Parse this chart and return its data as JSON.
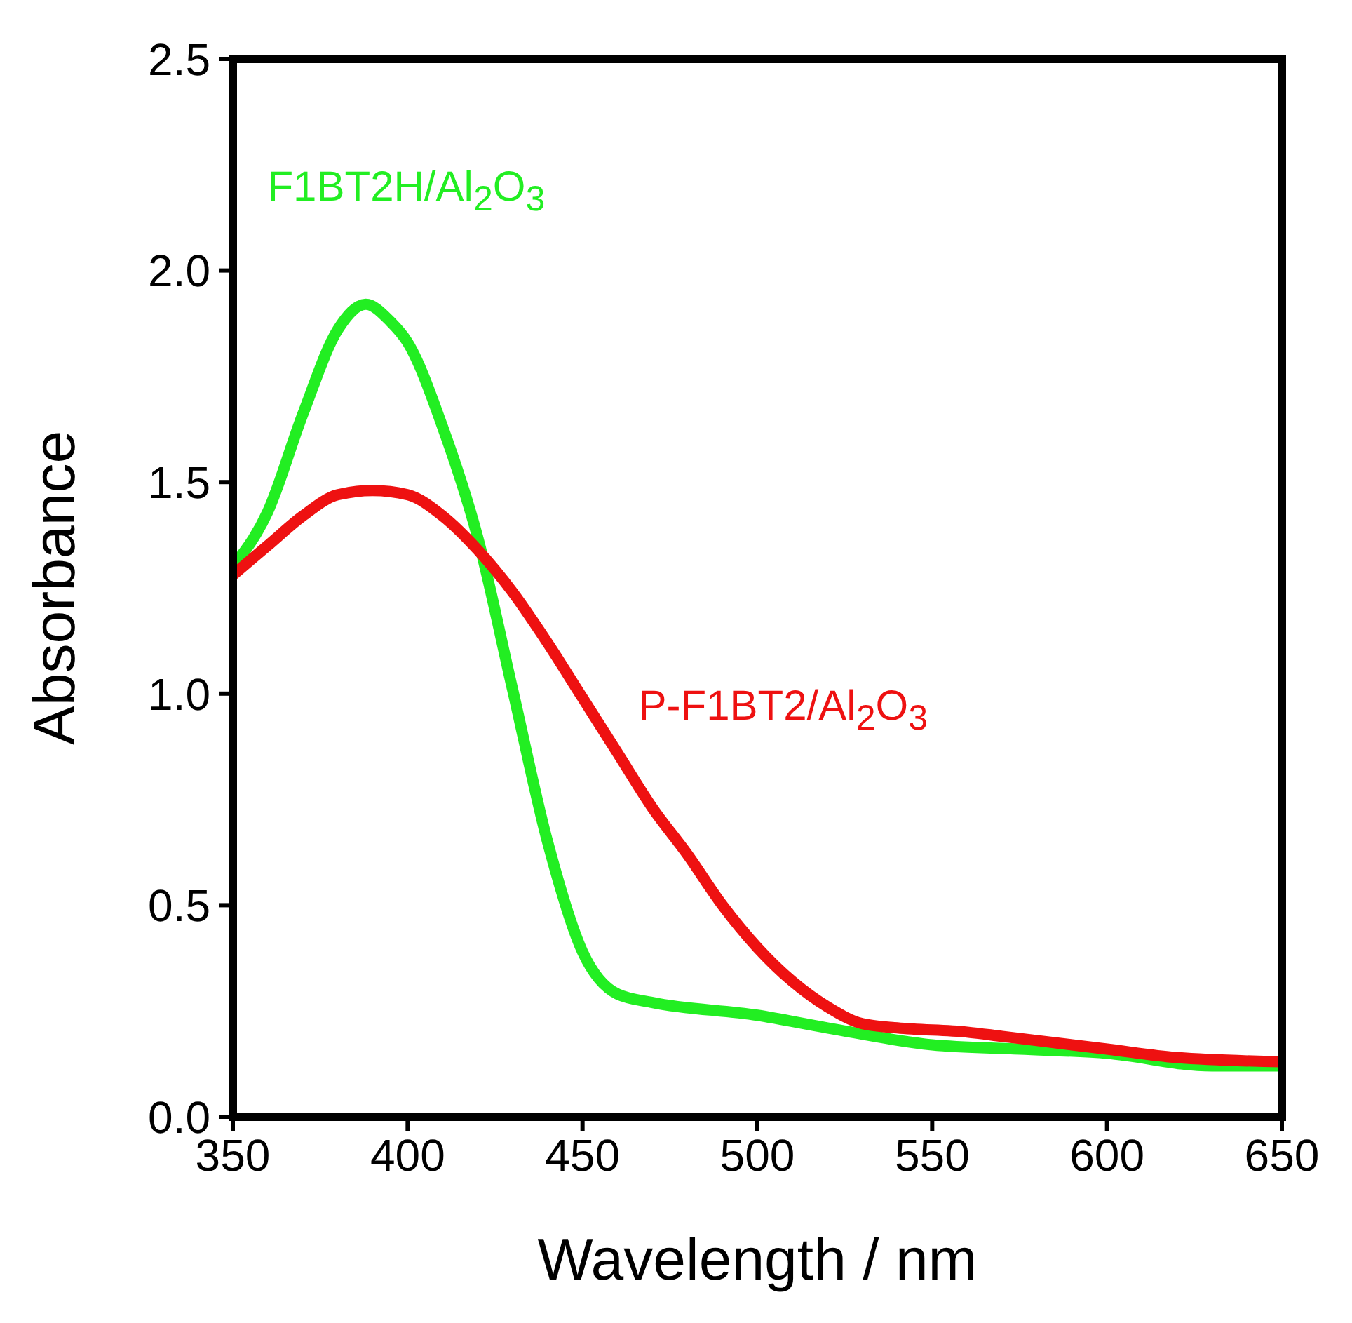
{
  "chart_data": {
    "type": "line",
    "xlabel": "Wavelength / nm",
    "ylabel": "Absorbance",
    "xlim": [
      350,
      650
    ],
    "xticks": [
      350,
      400,
      450,
      500,
      550,
      600,
      650
    ],
    "ylim": [
      0,
      2.5
    ],
    "yticks": [
      {
        "value": 0,
        "label": "0.0"
      },
      {
        "value": 0.5,
        "label": "0.5"
      },
      {
        "value": 1,
        "label": "1.0"
      },
      {
        "value": 1.5,
        "label": "1.5"
      },
      {
        "value": 2,
        "label": "2.0"
      },
      {
        "value": 2.5,
        "label": "2.5"
      }
    ],
    "grid": false,
    "legend": false,
    "marker": "none",
    "line_style": "solid",
    "series": [
      {
        "name": "F1BT2H/Al$_{2}$O$_{3}$",
        "color": "#22ee22",
        "x": [
          350,
          360,
          370,
          380,
          388,
          395,
          400,
          410,
          420,
          430,
          440,
          450,
          460,
          470,
          500,
          520,
          550,
          575,
          600,
          630,
          650
        ],
        "values": [
          1.3,
          1.43,
          1.66,
          1.86,
          1.92,
          1.88,
          1.83,
          1.63,
          1.37,
          1.01,
          0.65,
          0.39,
          0.29,
          0.27,
          0.24,
          0.21,
          0.17,
          0.16,
          0.15,
          0.12,
          0.12
        ]
      },
      {
        "name": "P-F1BT2/Al$_{2}$O$_{3}$",
        "color": "#ee1111",
        "x": [
          350,
          360,
          370,
          380,
          390,
          400,
          410,
          420,
          430,
          440,
          450,
          460,
          470,
          480,
          490,
          500,
          510,
          520,
          530,
          540,
          560,
          570,
          580,
          600,
          620,
          650
        ],
        "values": [
          1.28,
          1.35,
          1.42,
          1.47,
          1.48,
          1.47,
          1.42,
          1.34,
          1.24,
          1.12,
          0.99,
          0.86,
          0.73,
          0.62,
          0.5,
          0.4,
          0.32,
          0.26,
          0.22,
          0.21,
          0.2,
          0.19,
          0.18,
          0.16,
          0.14,
          0.13
        ]
      }
    ]
  }
}
